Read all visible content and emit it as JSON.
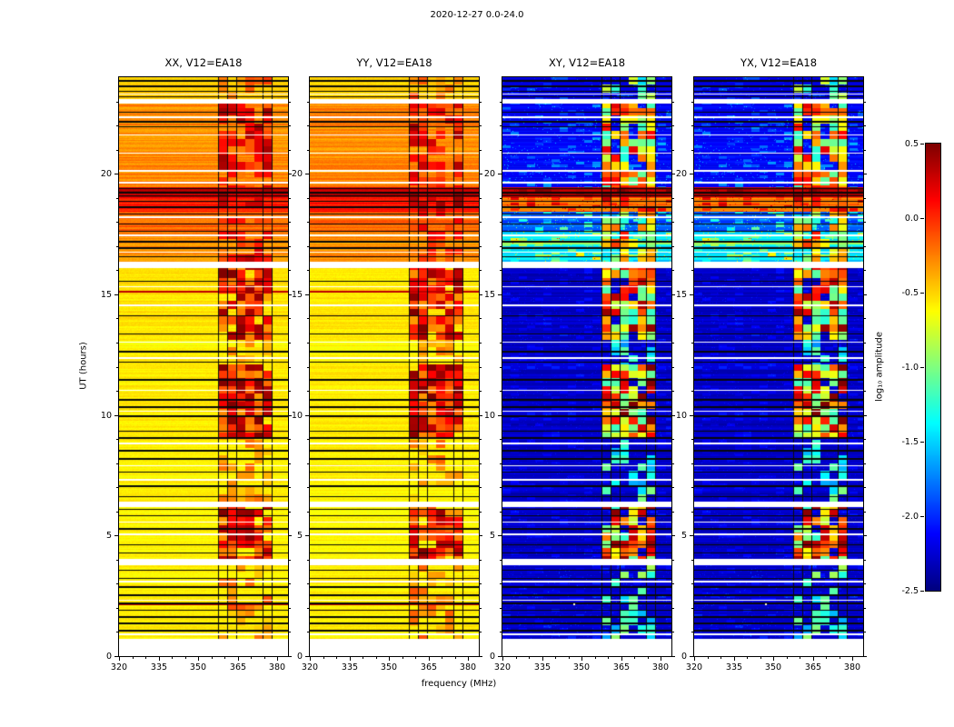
{
  "figure": {
    "title": "2020-12-27 0.0-24.0",
    "xlabel": "frequency (MHz)",
    "ylabel": "UT (hours)",
    "background": "#ffffff"
  },
  "axes": {
    "xlim": [
      320,
      384
    ],
    "ylim": [
      0,
      24
    ],
    "xticks": [
      320,
      335,
      350,
      365,
      380
    ],
    "yticks": [
      0,
      5,
      10,
      15,
      20
    ]
  },
  "colorbar": {
    "label": "log₁₀ amplitude",
    "ticks": [
      "0.5",
      "0.0",
      "-0.5",
      "-1.0",
      "-1.5",
      "-2.0",
      "-2.5"
    ],
    "clim": [
      -2.5,
      0.5
    ],
    "colormap": "jet"
  },
  "chart_data": {
    "type": "heatmap",
    "description": "Dynamic spectra (time vs frequency) of visibility amplitudes for baseline V12=EA18, four polarization products; color is log10 amplitude on a jet colormap from -2.5 (dark blue) to 0.5 (dark red).",
    "panels": [
      {
        "title": "XX, V12=EA18",
        "kind": "auto",
        "seed": 11
      },
      {
        "title": "YY, V12=EA18",
        "kind": "auto",
        "seed": 23
      },
      {
        "title": "XY, V12=EA18",
        "kind": "cross",
        "seed": 37
      },
      {
        "title": "YX, V12=EA18",
        "kind": "cross",
        "seed": 37
      }
    ],
    "x_range_mhz": [
      320,
      384
    ],
    "t_range_hours": [
      0,
      24
    ],
    "value_range": [
      -2.5,
      0.5
    ],
    "rfi_band_mhz": [
      357.5,
      378.0
    ],
    "band_divider_step_mhz": 3.4,
    "white_gaps_hours": [
      [
        0.0,
        0.72
      ],
      [
        3.78,
        4.02
      ],
      [
        6.18,
        6.42
      ],
      [
        16.08,
        16.35
      ],
      [
        22.92,
        23.08
      ]
    ],
    "white_lines_hours": [
      0.9,
      2.32,
      3.1,
      5.05,
      5.55,
      7.3,
      7.9,
      8.82,
      10.15,
      11.02,
      12.35,
      13.02,
      14.55,
      15.32,
      16.75,
      17.45,
      18.2,
      19.62,
      20.12,
      20.85,
      21.6,
      22.35,
      23.3
    ],
    "black_lines_hours": [
      1.05,
      1.35,
      1.62,
      1.9,
      2.18,
      2.52,
      2.86,
      3.22,
      3.55,
      4.28,
      4.62,
      5.28,
      5.82,
      6.08,
      6.62,
      7.05,
      7.62,
      8.18,
      8.52,
      9.05,
      9.32,
      9.95,
      10.32,
      10.62,
      11.45,
      12.18,
      12.62,
      13.35,
      14.12,
      15.55,
      16.55,
      16.92,
      17.18,
      17.62,
      17.92,
      18.32,
      18.62,
      18.85,
      19.08,
      19.22,
      19.38,
      21.95,
      22.15,
      22.55,
      23.18,
      23.42,
      23.62,
      23.85
    ],
    "auto_red_lines_hours": [
      2.15,
      15.12
    ],
    "cross_bright_lines_hours": [
      17.1
    ],
    "cross_dots": [
      {
        "t": 2.2,
        "f": 347
      }
    ],
    "zones": [
      {
        "t": [
          0.72,
          3.78
        ],
        "auto": -0.58,
        "cross": -2.28,
        "band": 0.45,
        "speckle": 0.15
      },
      {
        "t": [
          4.02,
          6.18
        ],
        "auto": -0.6,
        "cross": -2.3,
        "band": 0.95,
        "speckle": 0.12
      },
      {
        "t": [
          6.42,
          9.0
        ],
        "auto": -0.59,
        "cross": -2.3,
        "band": 0.4,
        "speckle": 0.1
      },
      {
        "t": [
          9.0,
          12.1
        ],
        "auto": -0.57,
        "cross": -2.3,
        "band": 1.0,
        "speckle": 0.12
      },
      {
        "t": [
          12.1,
          13.1
        ],
        "auto": -0.6,
        "cross": -2.3,
        "band": 0.35,
        "speckle": 0.1
      },
      {
        "t": [
          13.1,
          16.08
        ],
        "auto": -0.55,
        "cross": -2.3,
        "band": 0.95,
        "speckle": 0.12
      },
      {
        "t": [
          16.35,
          17.6
        ],
        "auto": -0.3,
        "cross": -1.45,
        "band": 0.8,
        "speckle": 0.5
      },
      {
        "t": [
          17.6,
          18.42
        ],
        "auto": -0.18,
        "cross": -1.9,
        "band": 0.7,
        "speckle": 0.45
      },
      {
        "t": [
          18.42,
          19.02
        ],
        "auto": 0.05,
        "cross": -0.25,
        "band": 0.9,
        "speckle": 0.3
      },
      {
        "t": [
          19.02,
          19.45
        ],
        "auto": 0.35,
        "cross": 0.3,
        "band": 1.0,
        "speckle": 0.2
      },
      {
        "t": [
          19.45,
          22.92
        ],
        "auto": -0.28,
        "cross": -2.15,
        "band": 0.85,
        "speckle": 0.3
      },
      {
        "t": [
          23.08,
          24.0
        ],
        "auto": -0.5,
        "cross": -2.25,
        "band": 0.5,
        "speckle": 0.2
      }
    ]
  }
}
